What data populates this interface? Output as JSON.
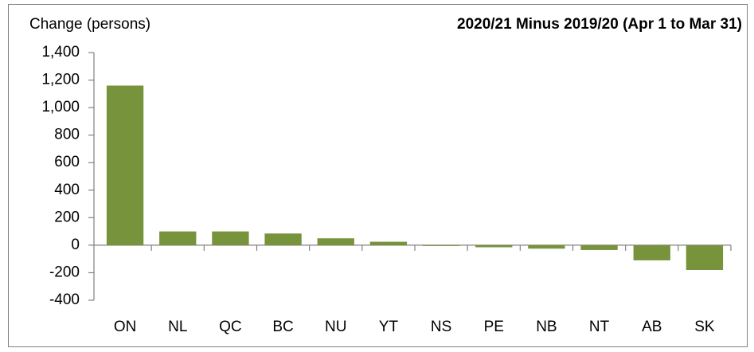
{
  "chart_data": {
    "type": "bar",
    "ylabel": "Change (persons)",
    "title": "2020/21 Minus 2019/20 (Apr 1 to Mar 31)",
    "categories": [
      "ON",
      "NL",
      "QC",
      "BC",
      "NU",
      "YT",
      "NS",
      "PE",
      "NB",
      "NT",
      "AB",
      "SK"
    ],
    "values": [
      1160,
      100,
      100,
      85,
      50,
      25,
      -5,
      -15,
      -25,
      -35,
      -110,
      -180
    ],
    "color": "#77933c",
    "ylim": [
      -400,
      1400
    ],
    "yticks": [
      -400,
      -200,
      0,
      200,
      400,
      600,
      800,
      {
        "value": 1000,
        "label": "1,000"
      },
      {
        "value": 1200,
        "label": "1,200"
      },
      {
        "value": 1400,
        "label": "1,400"
      }
    ],
    "grid": false
  }
}
